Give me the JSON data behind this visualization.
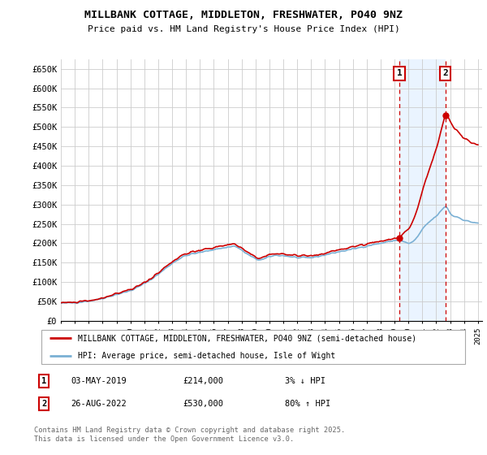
{
  "title": "MILLBANK COTTAGE, MIDDLETON, FRESHWATER, PO40 9NZ",
  "subtitle": "Price paid vs. HM Land Registry's House Price Index (HPI)",
  "legend_line1": "MILLBANK COTTAGE, MIDDLETON, FRESHWATER, PO40 9NZ (semi-detached house)",
  "legend_line2": "HPI: Average price, semi-detached house, Isle of Wight",
  "footnote": "Contains HM Land Registry data © Crown copyright and database right 2025.\nThis data is licensed under the Open Government Licence v3.0.",
  "sale1_date": "03-MAY-2019",
  "sale1_price": "£214,000",
  "sale1_hpi": "3% ↓ HPI",
  "sale1_year": 2019.34,
  "sale1_value": 214000,
  "sale2_date": "26-AUG-2022",
  "sale2_price": "£530,000",
  "sale2_hpi": "80% ↑ HPI",
  "sale2_year": 2022.65,
  "sale2_value": 530000,
  "ylim": [
    0,
    675000
  ],
  "yticks": [
    0,
    50000,
    100000,
    150000,
    200000,
    250000,
    300000,
    350000,
    400000,
    450000,
    500000,
    550000,
    600000,
    650000
  ],
  "ytick_labels": [
    "£0",
    "£50K",
    "£100K",
    "£150K",
    "£200K",
    "£250K",
    "£300K",
    "£350K",
    "£400K",
    "£450K",
    "£500K",
    "£550K",
    "£600K",
    "£650K"
  ],
  "color_red": "#cc0000",
  "color_blue": "#7ab0d4",
  "color_shade": "#ddeeff",
  "grid_color": "#cccccc",
  "xlim_min": 1995.0,
  "xlim_max": 2025.3
}
